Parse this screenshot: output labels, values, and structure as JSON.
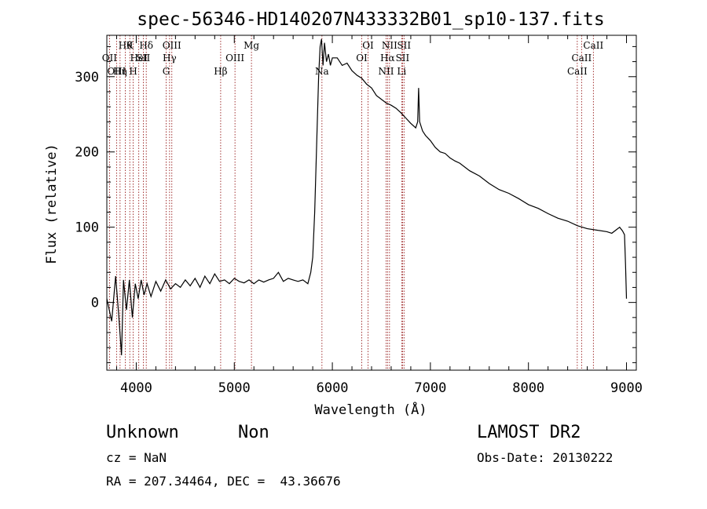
{
  "chart_data": {
    "type": "line",
    "title": "spec-56346-HD140207N433332B01_sp10-137.fits",
    "xlabel": "Wavelength (Å)",
    "ylabel": "Flux (relative)",
    "xlim": [
      3700,
      9100
    ],
    "ylim": [
      -90,
      355
    ],
    "x_ticks": [
      4000,
      5000,
      6000,
      7000,
      8000,
      9000
    ],
    "x_tick_labels": [
      "4000",
      "5000",
      "6000",
      "7000",
      "8000",
      "9000"
    ],
    "y_ticks": [
      0,
      100,
      200,
      300
    ],
    "y_tick_labels": [
      "0",
      "100",
      "200",
      "300"
    ],
    "series": [
      {
        "color": "#000000",
        "points": [
          [
            3700,
            5
          ],
          [
            3750,
            -25
          ],
          [
            3790,
            35
          ],
          [
            3820,
            -15
          ],
          [
            3850,
            -70
          ],
          [
            3870,
            30
          ],
          [
            3900,
            -10
          ],
          [
            3930,
            30
          ],
          [
            3960,
            -20
          ],
          [
            3990,
            25
          ],
          [
            4020,
            5
          ],
          [
            4050,
            30
          ],
          [
            4080,
            10
          ],
          [
            4110,
            25
          ],
          [
            4150,
            8
          ],
          [
            4200,
            28
          ],
          [
            4250,
            15
          ],
          [
            4300,
            30
          ],
          [
            4350,
            18
          ],
          [
            4400,
            25
          ],
          [
            4450,
            20
          ],
          [
            4500,
            30
          ],
          [
            4550,
            22
          ],
          [
            4600,
            32
          ],
          [
            4650,
            20
          ],
          [
            4700,
            35
          ],
          [
            4750,
            25
          ],
          [
            4800,
            38
          ],
          [
            4850,
            28
          ],
          [
            4900,
            30
          ],
          [
            4950,
            25
          ],
          [
            5000,
            32
          ],
          [
            5050,
            28
          ],
          [
            5100,
            26
          ],
          [
            5150,
            30
          ],
          [
            5200,
            25
          ],
          [
            5250,
            30
          ],
          [
            5300,
            27
          ],
          [
            5350,
            30
          ],
          [
            5400,
            32
          ],
          [
            5450,
            40
          ],
          [
            5500,
            28
          ],
          [
            5550,
            32
          ],
          [
            5600,
            30
          ],
          [
            5650,
            28
          ],
          [
            5700,
            30
          ],
          [
            5750,
            25
          ],
          [
            5780,
            40
          ],
          [
            5800,
            60
          ],
          [
            5820,
            120
          ],
          [
            5840,
            210
          ],
          [
            5860,
            300
          ],
          [
            5875,
            340
          ],
          [
            5890,
            350
          ],
          [
            5905,
            315
          ],
          [
            5920,
            345
          ],
          [
            5940,
            320
          ],
          [
            5960,
            330
          ],
          [
            5980,
            315
          ],
          [
            6000,
            325
          ],
          [
            6050,
            325
          ],
          [
            6100,
            315
          ],
          [
            6150,
            318
          ],
          [
            6200,
            308
          ],
          [
            6250,
            302
          ],
          [
            6300,
            298
          ],
          [
            6350,
            290
          ],
          [
            6400,
            285
          ],
          [
            6450,
            275
          ],
          [
            6500,
            270
          ],
          [
            6550,
            265
          ],
          [
            6600,
            262
          ],
          [
            6650,
            258
          ],
          [
            6700,
            252
          ],
          [
            6750,
            245
          ],
          [
            6800,
            238
          ],
          [
            6850,
            232
          ],
          [
            6870,
            240
          ],
          [
            6880,
            285
          ],
          [
            6890,
            240
          ],
          [
            6920,
            228
          ],
          [
            6950,
            222
          ],
          [
            7000,
            215
          ],
          [
            7050,
            206
          ],
          [
            7100,
            200
          ],
          [
            7150,
            198
          ],
          [
            7200,
            192
          ],
          [
            7250,
            188
          ],
          [
            7300,
            185
          ],
          [
            7400,
            175
          ],
          [
            7500,
            168
          ],
          [
            7600,
            158
          ],
          [
            7700,
            150
          ],
          [
            7800,
            145
          ],
          [
            7900,
            138
          ],
          [
            8000,
            130
          ],
          [
            8100,
            125
          ],
          [
            8200,
            118
          ],
          [
            8300,
            112
          ],
          [
            8400,
            108
          ],
          [
            8500,
            102
          ],
          [
            8600,
            98
          ],
          [
            8700,
            96
          ],
          [
            8800,
            94
          ],
          [
            8850,
            92
          ],
          [
            8900,
            97
          ],
          [
            8930,
            100
          ],
          [
            8960,
            95
          ],
          [
            8980,
            90
          ],
          [
            8990,
            50
          ],
          [
            9000,
            5
          ]
        ]
      }
    ],
    "reference_lines": [
      {
        "wavelength": 3727,
        "label": "OII"
      },
      {
        "wavelength": 3799,
        "label": "OIII"
      },
      {
        "wavelength": 3835,
        "label": "Hη"
      },
      {
        "wavelength": 3889,
        "label": "Hθ"
      },
      {
        "wavelength": 3934,
        "label": "K"
      },
      {
        "wavelength": 3969,
        "label": "H"
      },
      {
        "wavelength": 4026,
        "label": "HeI"
      },
      {
        "wavelength": 4072,
        "label": "SII"
      },
      {
        "wavelength": 4102,
        "label": "Hδ"
      },
      {
        "wavelength": 4305,
        "label": "G"
      },
      {
        "wavelength": 4340,
        "label": "Hγ"
      },
      {
        "wavelength": 4363,
        "label": "OIII"
      },
      {
        "wavelength": 4861,
        "label": "Hβ"
      },
      {
        "wavelength": 5007,
        "label": "OIII"
      },
      {
        "wavelength": 5175,
        "label": "Mg"
      },
      {
        "wavelength": 5894,
        "label": "Na"
      },
      {
        "wavelength": 6300,
        "label": "OI"
      },
      {
        "wavelength": 6364,
        "label": "OI"
      },
      {
        "wavelength": 6548,
        "label": "NII"
      },
      {
        "wavelength": 6563,
        "label": "Hα"
      },
      {
        "wavelength": 6583,
        "label": "NII"
      },
      {
        "wavelength": 6707,
        "label": "Li"
      },
      {
        "wavelength": 6716,
        "label": "SII"
      },
      {
        "wavelength": 6731,
        "label": "SII"
      },
      {
        "wavelength": 8498,
        "label": "CaII"
      },
      {
        "wavelength": 8542,
        "label": "CaII"
      },
      {
        "wavelength": 8662,
        "label": "CaII"
      }
    ],
    "line_labels": [
      {
        "text": "Hθ",
        "wavelength": 3889,
        "row": 1
      },
      {
        "text": "K",
        "wavelength": 3934,
        "row": 1
      },
      {
        "text": "Hδ",
        "wavelength": 4102,
        "row": 1
      },
      {
        "text": "OIII",
        "wavelength": 4363,
        "row": 1
      },
      {
        "text": "Mg",
        "wavelength": 5175,
        "row": 1
      },
      {
        "text": "OI",
        "wavelength": 6364,
        "row": 1
      },
      {
        "text": "NII",
        "wavelength": 6583,
        "row": 1
      },
      {
        "text": "SII",
        "wavelength": 6731,
        "row": 1
      },
      {
        "text": "CaII",
        "wavelength": 8662,
        "row": 1
      },
      {
        "text": "OII",
        "wavelength": 3727,
        "row": 2
      },
      {
        "text": "HeI",
        "wavelength": 4026,
        "row": 2
      },
      {
        "text": "SII",
        "wavelength": 4072,
        "row": 2
      },
      {
        "text": "Hγ",
        "wavelength": 4340,
        "row": 2
      },
      {
        "text": "OIII",
        "wavelength": 5007,
        "row": 2
      },
      {
        "text": "OI",
        "wavelength": 6300,
        "row": 2
      },
      {
        "text": "Hα",
        "wavelength": 6563,
        "row": 2
      },
      {
        "text": "SII",
        "wavelength": 6716,
        "row": 2
      },
      {
        "text": "CaII",
        "wavelength": 8542,
        "row": 2
      },
      {
        "text": "OIII",
        "wavelength": 3799,
        "row": 3
      },
      {
        "text": "Hη",
        "wavelength": 3835,
        "row": 3
      },
      {
        "text": "H",
        "wavelength": 3969,
        "row": 3
      },
      {
        "text": "G",
        "wavelength": 4305,
        "row": 3
      },
      {
        "text": "Hβ",
        "wavelength": 4861,
        "row": 3
      },
      {
        "text": "Na",
        "wavelength": 5894,
        "row": 3
      },
      {
        "text": "NII",
        "wavelength": 6548,
        "row": 3
      },
      {
        "text": "Li",
        "wavelength": 6707,
        "row": 3
      },
      {
        "text": "CaII",
        "wavelength": 8498,
        "row": 3
      }
    ],
    "grid": false,
    "reference_line_color": "#8b0000"
  },
  "footer": {
    "class_text": "Unknown",
    "subclass_text": "Non",
    "survey_text": "LAMOST DR2",
    "cz_text": "cz = NaN",
    "obs_date_text": "Obs-Date: 20130222",
    "coords_text": "RA = 207.34464, DEC =  43.36676"
  }
}
